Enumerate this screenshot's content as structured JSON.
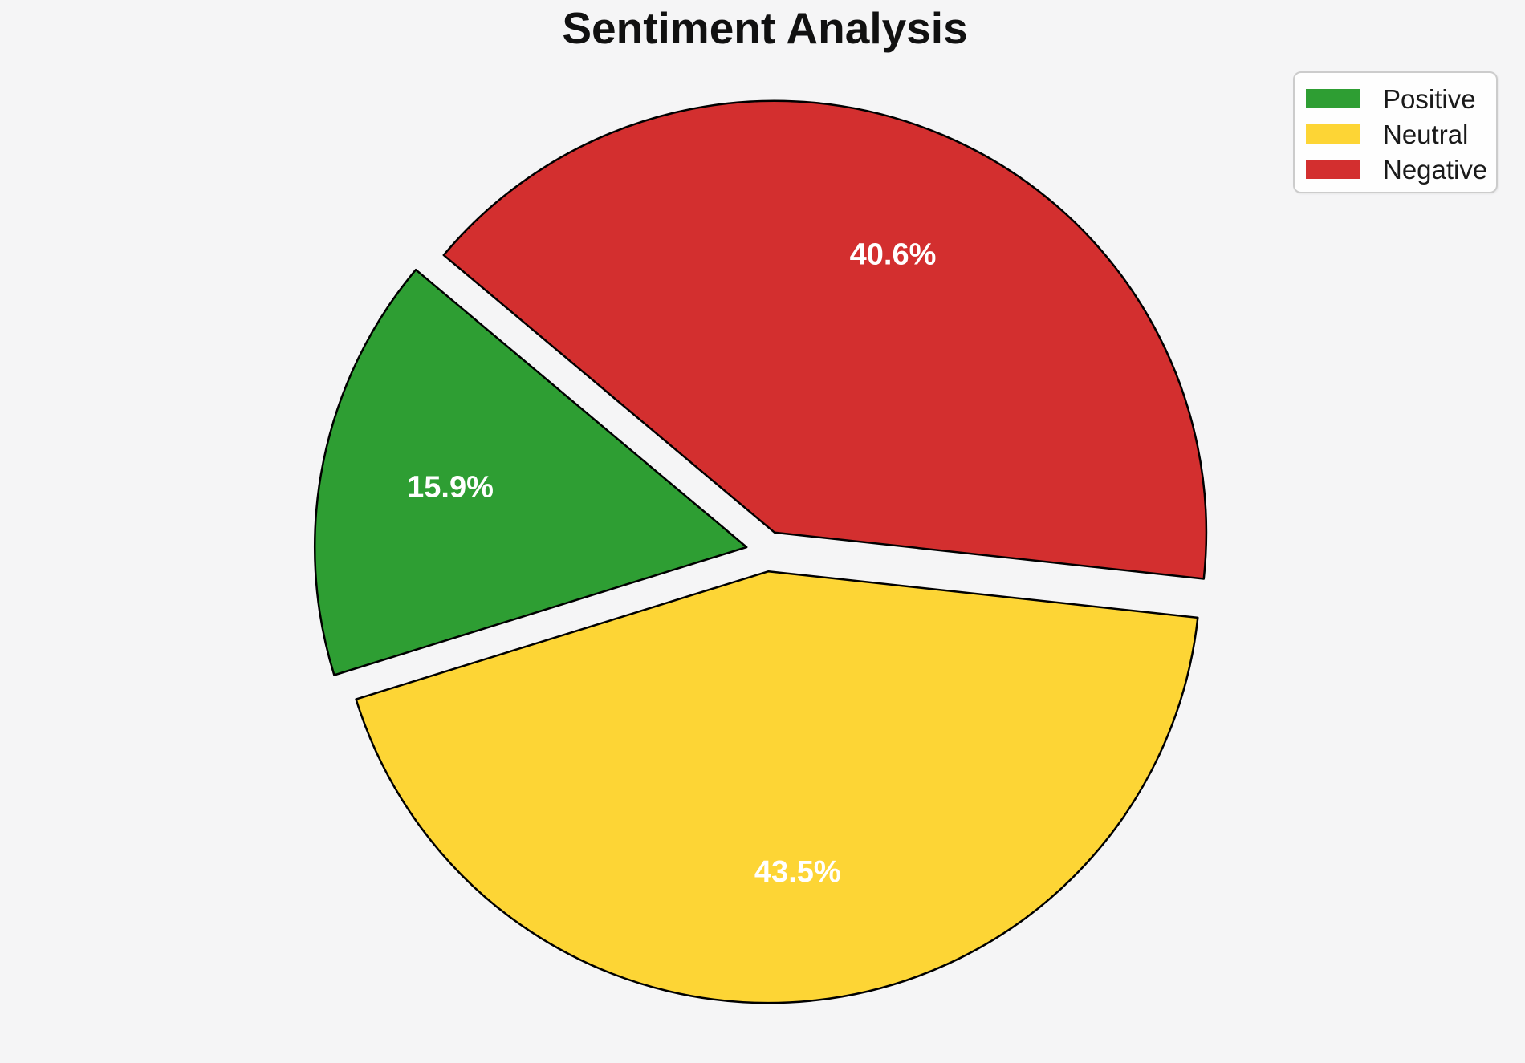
{
  "page": {
    "background_color": "#f5f5f6"
  },
  "chart_data": {
    "type": "pie",
    "title": "Sentiment Analysis",
    "categories": [
      "Positive",
      "Neutral",
      "Negative"
    ],
    "values": [
      15.9,
      43.5,
      40.6
    ],
    "slices": [
      {
        "label": "Positive",
        "percent": 15.9,
        "display": "15.9%",
        "color": "#2e9e33"
      },
      {
        "label": "Neutral",
        "percent": 43.5,
        "display": "43.5%",
        "color": "#fdd535"
      },
      {
        "label": "Negative",
        "percent": 40.6,
        "display": "40.6%",
        "color": "#d32f2f"
      }
    ],
    "start_angle": 140,
    "direction": "counterclockwise",
    "explode": 0.047,
    "pct_distance": 0.7,
    "edge_color": "#000000",
    "edge_width": 2.5,
    "label_color": "#ffffff",
    "legend_position": "upper right",
    "legend_border_color": "#cccccc",
    "legend_background": "#fefefe"
  }
}
